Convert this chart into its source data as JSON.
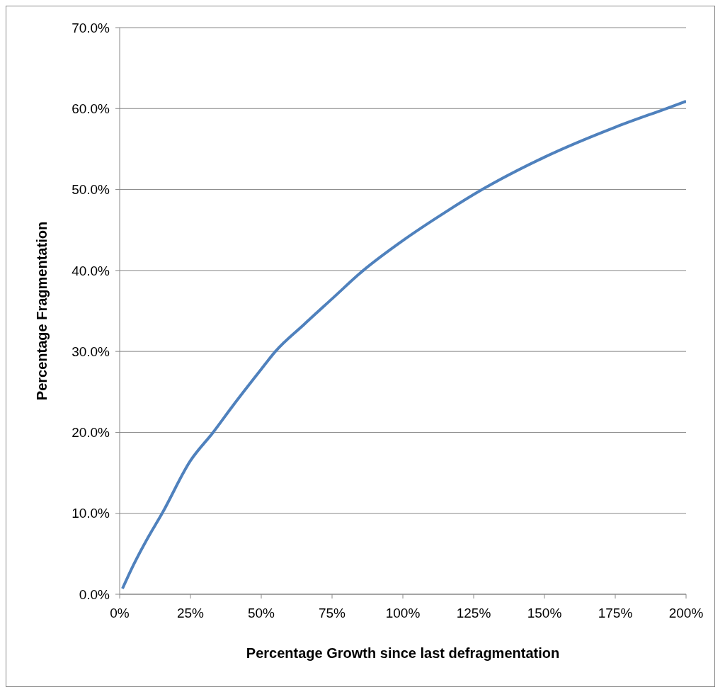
{
  "chart_data": {
    "type": "line",
    "xlabel": "Percentage Growth since last defragmentation",
    "ylabel": "Percentage Fragmentation",
    "x": [
      1,
      5,
      10,
      15,
      25,
      33,
      40,
      50,
      55,
      65,
      75,
      86,
      100,
      115,
      128,
      150,
      175,
      193,
      200
    ],
    "series": [
      {
        "color": "#4f81bd",
        "values": [
          0.7,
          3.7,
          7,
          10,
          16.5,
          20,
          23.3,
          27.8,
          30,
          33.3,
          36.5,
          40,
          43.7,
          47.2,
          50,
          54,
          57.7,
          60,
          60.9
        ]
      }
    ],
    "xlim": [
      0,
      200
    ],
    "xticks": [
      {
        "value": 0,
        "label": "0%"
      },
      {
        "value": 25,
        "label": "25%"
      },
      {
        "value": 50,
        "label": "50%"
      },
      {
        "value": 75,
        "label": "75%"
      },
      {
        "value": 100,
        "label": "100%"
      },
      {
        "value": 125,
        "label": "125%"
      },
      {
        "value": 150,
        "label": "150%"
      },
      {
        "value": 175,
        "label": "175%"
      },
      {
        "value": 200,
        "label": "200%"
      }
    ],
    "ylim": [
      0,
      70
    ],
    "yticks": [
      {
        "value": 0,
        "label": "0.0%"
      },
      {
        "value": 10,
        "label": "10.0%"
      },
      {
        "value": 20,
        "label": "20.0%"
      },
      {
        "value": 30,
        "label": "30.0%"
      },
      {
        "value": 40,
        "label": "40.0%"
      },
      {
        "value": 50,
        "label": "50.0%"
      },
      {
        "value": 60,
        "label": "60.0%"
      },
      {
        "value": 70,
        "label": "70.0%"
      }
    ],
    "grid": "y",
    "marker": "none",
    "line_style": "solid"
  }
}
